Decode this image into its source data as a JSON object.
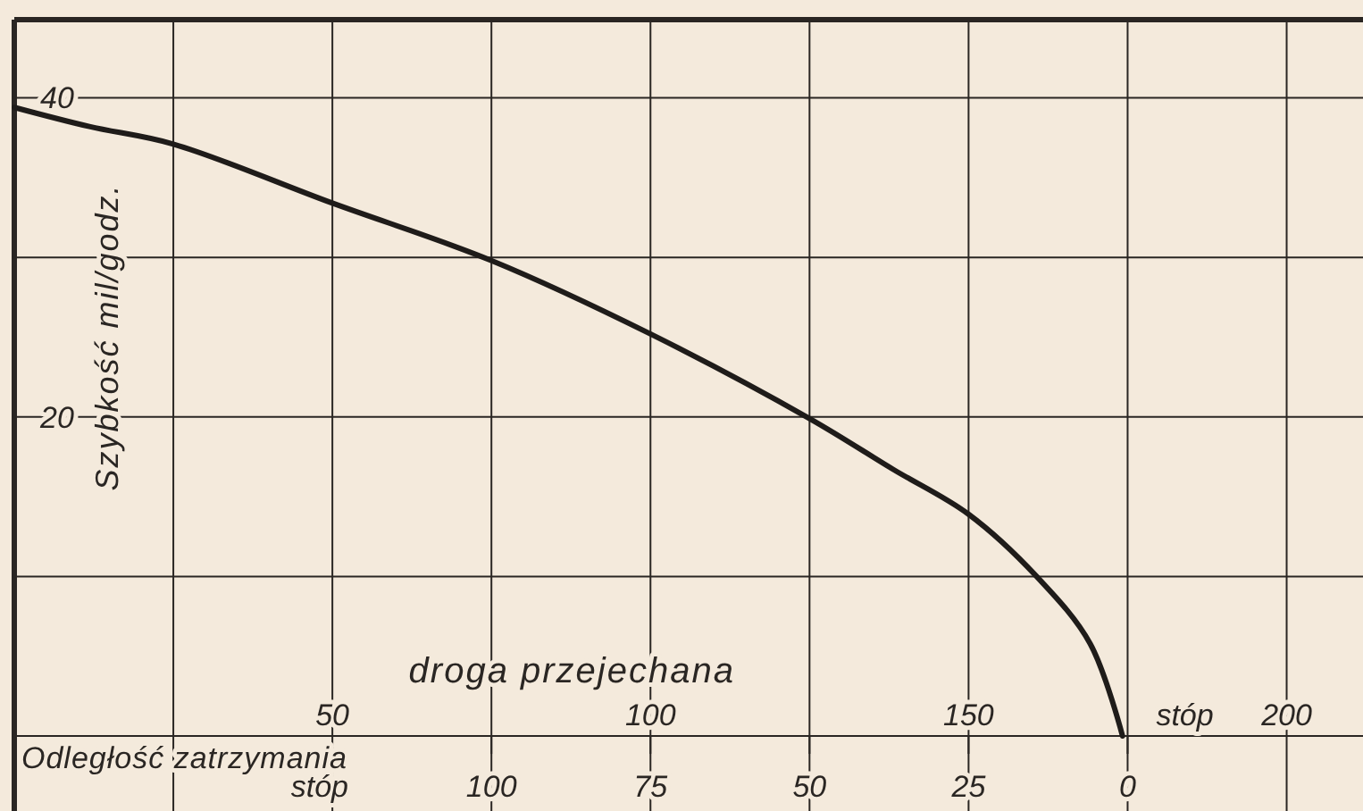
{
  "chart_data": {
    "type": "line",
    "xlabel": "droga przejechana",
    "x2label": "Odległość zatrzymania",
    "ylabel": "Szybkość mil/godz.",
    "annotations": [
      "stóp",
      "stóp"
    ],
    "xlim": [
      0,
      212
    ],
    "xticks": [
      {
        "value": 25,
        "label": null
      },
      50,
      {
        "value": 75,
        "label": null
      },
      100,
      {
        "value": 125,
        "label": null
      },
      150,
      {
        "value": 175,
        "label": null
      },
      200
    ],
    "x2lim": [
      175,
      -37
    ],
    "x2ticks": [
      100,
      75,
      50,
      25,
      0
    ],
    "ylim": [
      -4.7,
      44.9
    ],
    "yticks": [
      {
        "value": 0,
        "label": null
      },
      {
        "value": 10,
        "label": null
      },
      20,
      {
        "value": 30,
        "label": null
      },
      40
    ],
    "grid": true,
    "line_style": "solid",
    "marker": "none",
    "series": [
      {
        "color": "#1f1c1a",
        "x": [
          0,
          11.8,
          25,
          50,
          75,
          100,
          125,
          138.2,
          150,
          160.7,
          169.1,
          174.2
        ],
        "values": [
          39.4,
          38.2,
          37.1,
          33.4,
          29.8,
          25.2,
          19.9,
          16.7,
          13.9,
          10,
          5.8,
          0
        ]
      }
    ]
  }
}
